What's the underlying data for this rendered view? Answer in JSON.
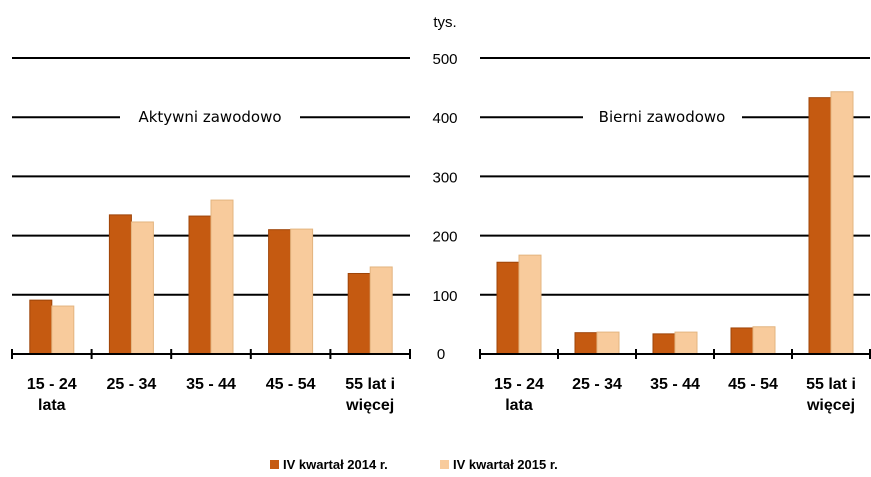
{
  "chart_data": {
    "type": "bar",
    "unit_label": "tys.",
    "ylim": [
      0,
      500
    ],
    "yticks": [
      "0",
      "100",
      "200",
      "300",
      "400",
      "500"
    ],
    "grid": true,
    "legend_position": "bottom",
    "colors": {
      "series_2014": "#C55A11",
      "series_2015": "#F8CB9C"
    },
    "series_names": [
      "IV kwartał 2014 r.",
      "IV kwartał 2015 r."
    ],
    "panels": [
      {
        "title": "Aktywni zawodowo",
        "categories": [
          [
            "15 - 24",
            "lata"
          ],
          [
            "25 - 34"
          ],
          [
            "35 - 44"
          ],
          [
            "45 - 54"
          ],
          [
            "55 lat i",
            "więcej"
          ]
        ],
        "series": [
          {
            "name": "IV kwartał 2014 r.",
            "values": [
              91,
              235,
              233,
              210,
              136
            ]
          },
          {
            "name": "IV kwartał 2015 r.",
            "values": [
              81,
              223,
              260,
              211,
              147
            ]
          }
        ]
      },
      {
        "title": "Bierni zawodowo",
        "categories": [
          [
            "15 - 24",
            "lata"
          ],
          [
            "25 - 34"
          ],
          [
            "35 - 44"
          ],
          [
            "45 - 54"
          ],
          [
            "55 lat i",
            "więcej"
          ]
        ],
        "series": [
          {
            "name": "IV kwartał 2014 r.",
            "values": [
              155,
              36,
              34,
              44,
              433
            ]
          },
          {
            "name": "IV kwartał 2015 r.",
            "values": [
              167,
              37,
              37,
              46,
              443
            ]
          }
        ]
      }
    ]
  }
}
